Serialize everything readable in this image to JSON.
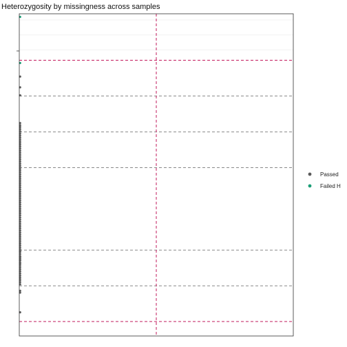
{
  "chart_data": {
    "type": "scatter",
    "title": "Heterozygosity by missingness across samples",
    "xlabel": "",
    "ylabel": "",
    "xlim": [
      0,
      1
    ],
    "ylim": [
      0,
      1
    ],
    "grid": true,
    "legend_position": "right",
    "series": [
      {
        "name": "Passed",
        "color": "#5b5b5b",
        "points": [
          {
            "x": 0.003,
            "y": 0.796
          },
          {
            "x": 0.003,
            "y": 0.761
          },
          {
            "x": 0.003,
            "y": 0.735
          },
          {
            "x": 0.003,
            "y": 0.645
          },
          {
            "x": 0.003,
            "y": 0.638
          },
          {
            "x": 0.003,
            "y": 0.632
          },
          {
            "x": 0.003,
            "y": 0.625
          },
          {
            "x": 0.003,
            "y": 0.618
          },
          {
            "x": 0.003,
            "y": 0.611
          },
          {
            "x": 0.003,
            "y": 0.604
          },
          {
            "x": 0.003,
            "y": 0.597
          },
          {
            "x": 0.003,
            "y": 0.59
          },
          {
            "x": 0.003,
            "y": 0.583
          },
          {
            "x": 0.003,
            "y": 0.576
          },
          {
            "x": 0.003,
            "y": 0.569
          },
          {
            "x": 0.003,
            "y": 0.562
          },
          {
            "x": 0.003,
            "y": 0.555
          },
          {
            "x": 0.003,
            "y": 0.548
          },
          {
            "x": 0.003,
            "y": 0.541
          },
          {
            "x": 0.003,
            "y": 0.534
          },
          {
            "x": 0.003,
            "y": 0.527
          },
          {
            "x": 0.003,
            "y": 0.52
          },
          {
            "x": 0.003,
            "y": 0.513
          },
          {
            "x": 0.003,
            "y": 0.506
          },
          {
            "x": 0.003,
            "y": 0.499
          },
          {
            "x": 0.003,
            "y": 0.492
          },
          {
            "x": 0.003,
            "y": 0.485
          },
          {
            "x": 0.003,
            "y": 0.478
          },
          {
            "x": 0.003,
            "y": 0.471
          },
          {
            "x": 0.003,
            "y": 0.464
          },
          {
            "x": 0.003,
            "y": 0.457
          },
          {
            "x": 0.003,
            "y": 0.45
          },
          {
            "x": 0.003,
            "y": 0.443
          },
          {
            "x": 0.003,
            "y": 0.436
          },
          {
            "x": 0.003,
            "y": 0.429
          },
          {
            "x": 0.003,
            "y": 0.422
          },
          {
            "x": 0.003,
            "y": 0.415
          },
          {
            "x": 0.003,
            "y": 0.408
          },
          {
            "x": 0.003,
            "y": 0.401
          },
          {
            "x": 0.003,
            "y": 0.394
          },
          {
            "x": 0.003,
            "y": 0.387
          },
          {
            "x": 0.003,
            "y": 0.38
          },
          {
            "x": 0.003,
            "y": 0.373
          },
          {
            "x": 0.003,
            "y": 0.366
          },
          {
            "x": 0.003,
            "y": 0.359
          },
          {
            "x": 0.003,
            "y": 0.352
          },
          {
            "x": 0.003,
            "y": 0.345
          },
          {
            "x": 0.003,
            "y": 0.338
          },
          {
            "x": 0.003,
            "y": 0.331
          },
          {
            "x": 0.003,
            "y": 0.324
          },
          {
            "x": 0.003,
            "y": 0.317
          },
          {
            "x": 0.003,
            "y": 0.31
          },
          {
            "x": 0.003,
            "y": 0.303
          },
          {
            "x": 0.003,
            "y": 0.296
          },
          {
            "x": 0.003,
            "y": 0.289
          },
          {
            "x": 0.003,
            "y": 0.282
          },
          {
            "x": 0.003,
            "y": 0.275
          },
          {
            "x": 0.003,
            "y": 0.268
          },
          {
            "x": 0.003,
            "y": 0.261
          },
          {
            "x": 0.003,
            "y": 0.254
          },
          {
            "x": 0.003,
            "y": 0.247
          },
          {
            "x": 0.003,
            "y": 0.24
          },
          {
            "x": 0.003,
            "y": 0.233
          },
          {
            "x": 0.003,
            "y": 0.226
          },
          {
            "x": 0.003,
            "y": 0.219
          },
          {
            "x": 0.003,
            "y": 0.212
          },
          {
            "x": 0.003,
            "y": 0.205
          },
          {
            "x": 0.003,
            "y": 0.198
          },
          {
            "x": 0.003,
            "y": 0.191
          },
          {
            "x": 0.003,
            "y": 0.184
          },
          {
            "x": 0.003,
            "y": 0.177
          },
          {
            "x": 0.003,
            "y": 0.17
          },
          {
            "x": 0.003,
            "y": 0.163
          },
          {
            "x": 0.003,
            "y": 0.156
          },
          {
            "x": 0.003,
            "y": 0.149
          },
          {
            "x": 0.003,
            "y": 0.142
          },
          {
            "x": 0.003,
            "y": 0.135
          },
          {
            "x": 0.003,
            "y": 0.128
          },
          {
            "x": 0.003,
            "y": 0.121
          },
          {
            "x": 0.003,
            "y": 0.2
          },
          {
            "x": 0.003,
            "y": 0.21
          },
          {
            "x": 0.003,
            "y": 0.228
          },
          {
            "x": 0.003,
            "y": 0.19
          },
          {
            "x": 0.003,
            "y": 0.1
          },
          {
            "x": 0.003,
            "y": 0.094
          },
          {
            "x": 0.003,
            "y": 0.03
          }
        ]
      },
      {
        "name": "Failed H",
        "color": "#1b9e77",
        "points": [
          {
            "x": 0.003,
            "y": 0.99
          },
          {
            "x": 0.003,
            "y": 0.84
          }
        ]
      }
    ],
    "reference_lines": {
      "horizontal": [
        {
          "y": 0.0,
          "color": "#c2185b"
        },
        {
          "y": 0.116,
          "color": "#888888"
        },
        {
          "y": 0.232,
          "color": "#888888"
        },
        {
          "y": 0.5,
          "color": "#888888"
        },
        {
          "y": 0.616,
          "color": "#888888"
        },
        {
          "y": 0.733,
          "color": "#888888"
        },
        {
          "y": 0.849,
          "color": "#c2185b"
        }
      ],
      "vertical": [
        {
          "x": 0.5,
          "color": "#c2185b"
        }
      ]
    },
    "gridlines_y": [
      0.883,
      0.931,
      0.98
    ]
  },
  "legend": {
    "items": [
      {
        "label": "Passed",
        "color": "#5b5b5b"
      },
      {
        "label": "Failed H",
        "color": "#1b9e77"
      }
    ]
  }
}
